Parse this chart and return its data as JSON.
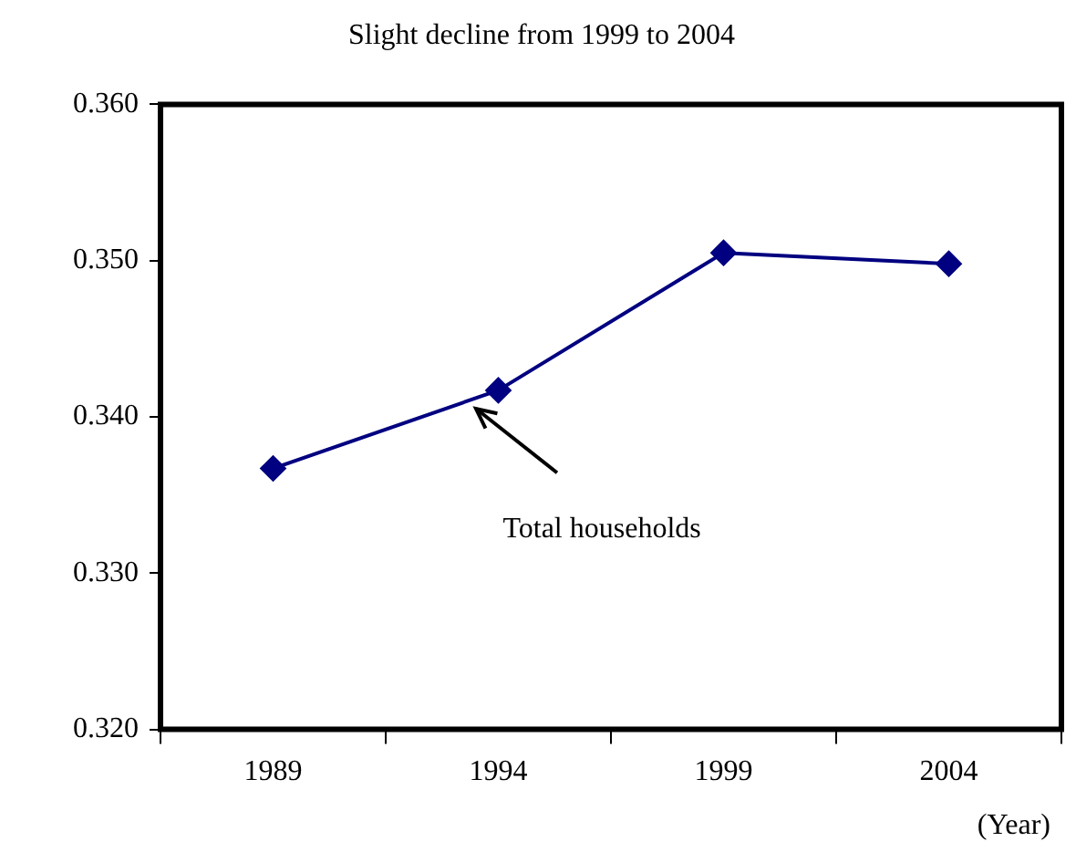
{
  "chart_data": {
    "type": "line",
    "title": "Slight decline from 1999 to 2004",
    "xlabel": "(Year)",
    "categories": [
      "1989",
      "1994",
      "1999",
      "2004"
    ],
    "series": [
      {
        "color": "#000080",
        "values": [
          0.3367,
          0.3417,
          0.3505,
          0.3498
        ]
      }
    ],
    "ylim": [
      0.32,
      0.36
    ],
    "yticks": [
      {
        "value": 0.32,
        "label": "0.320"
      },
      {
        "value": 0.33,
        "label": "0.330"
      },
      {
        "value": 0.34,
        "label": "0.340"
      },
      {
        "value": 0.35,
        "label": "0.350"
      },
      {
        "value": 0.36,
        "label": "0.360"
      }
    ],
    "grid": false,
    "legend": false,
    "marker": "diamond",
    "line_style": "solid",
    "annotations": [
      "Total households"
    ]
  }
}
